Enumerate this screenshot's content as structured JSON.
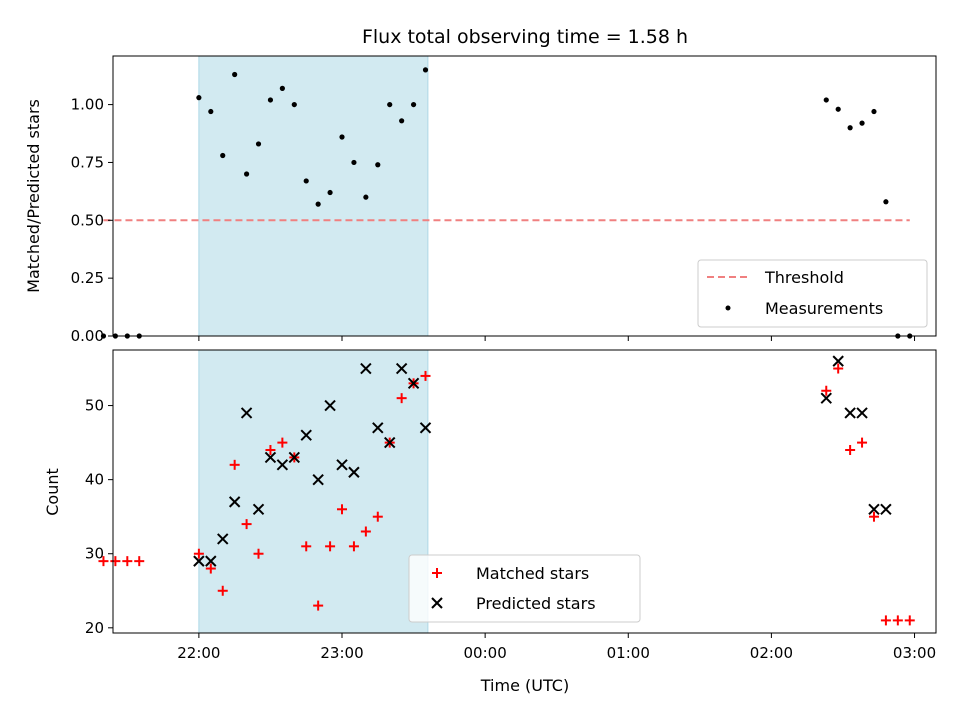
{
  "chart_data": [
    {
      "type": "scatter",
      "title": "Flux total observing time = 1.58 h",
      "xlabel": "",
      "ylabel": "Matched/Predicted stars",
      "ylim": [
        0,
        1.21
      ],
      "yticks": [
        "0.00",
        "0.25",
        "0.50",
        "0.75",
        "1.00"
      ],
      "ytick_values": [
        0,
        0.25,
        0.5,
        0.75,
        1.0
      ],
      "shaded_interval": [
        "22:00",
        "23:36"
      ],
      "shade_color": "#add8e6",
      "legend_position": "lower right",
      "threshold": {
        "name": "Threshold",
        "y": 0.5,
        "x_range": [
          "21:20",
          "02:58"
        ],
        "color": "#f08080",
        "style": "dashed"
      },
      "series": [
        {
          "name": "Measurements",
          "color": "#000000",
          "marker": "dot",
          "points": [
            [
              "21:20",
              0.0
            ],
            [
              "21:25",
              0.0
            ],
            [
              "21:30",
              0.0
            ],
            [
              "21:35",
              0.0
            ],
            [
              "22:00",
              1.03
            ],
            [
              "22:05",
              0.97
            ],
            [
              "22:10",
              0.78
            ],
            [
              "22:15",
              1.13
            ],
            [
              "22:20",
              0.7
            ],
            [
              "22:25",
              0.83
            ],
            [
              "22:30",
              1.02
            ],
            [
              "22:35",
              1.07
            ],
            [
              "22:40",
              1.0
            ],
            [
              "22:45",
              0.67
            ],
            [
              "22:50",
              0.57
            ],
            [
              "22:55",
              0.62
            ],
            [
              "23:00",
              0.86
            ],
            [
              "23:05",
              0.75
            ],
            [
              "23:10",
              0.6
            ],
            [
              "23:15",
              0.74
            ],
            [
              "23:20",
              1.0
            ],
            [
              "23:25",
              0.93
            ],
            [
              "23:30",
              1.0
            ],
            [
              "23:35",
              1.15
            ],
            [
              "02:23",
              1.02
            ],
            [
              "02:28",
              0.98
            ],
            [
              "02:33",
              0.9
            ],
            [
              "02:38",
              0.92
            ],
            [
              "02:43",
              0.97
            ],
            [
              "02:48",
              0.58
            ],
            [
              "02:53",
              0.0
            ],
            [
              "02:58",
              0.0
            ]
          ]
        }
      ]
    },
    {
      "type": "scatter",
      "xlabel": "Time (UTC)",
      "ylabel": "Count",
      "ylim": [
        19.3,
        57.5
      ],
      "yticks": [
        "20",
        "30",
        "40",
        "50"
      ],
      "ytick_values": [
        20,
        30,
        40,
        50
      ],
      "x_range": [
        "21:24",
        "03:09"
      ],
      "xticks": [
        "22:00",
        "23:00",
        "00:00",
        "01:00",
        "02:00",
        "03:00"
      ],
      "shaded_interval": [
        "22:00",
        "23:36"
      ],
      "shade_color": "#add8e6",
      "legend_position": "lower center",
      "series": [
        {
          "name": "Matched stars",
          "color": "#ff0000",
          "marker": "plus",
          "points": [
            [
              "21:20",
              29
            ],
            [
              "21:25",
              29
            ],
            [
              "21:30",
              29
            ],
            [
              "21:35",
              29
            ],
            [
              "22:00",
              30
            ],
            [
              "22:05",
              28
            ],
            [
              "22:10",
              25
            ],
            [
              "22:15",
              42
            ],
            [
              "22:20",
              34
            ],
            [
              "22:25",
              30
            ],
            [
              "22:30",
              44
            ],
            [
              "22:35",
              45
            ],
            [
              "22:40",
              43
            ],
            [
              "22:45",
              31
            ],
            [
              "22:50",
              23
            ],
            [
              "22:55",
              31
            ],
            [
              "23:00",
              36
            ],
            [
              "23:05",
              31
            ],
            [
              "23:10",
              33
            ],
            [
              "23:15",
              35
            ],
            [
              "23:20",
              45
            ],
            [
              "23:25",
              51
            ],
            [
              "23:30",
              53
            ],
            [
              "23:35",
              54
            ],
            [
              "02:23",
              52
            ],
            [
              "02:28",
              55
            ],
            [
              "02:33",
              44
            ],
            [
              "02:38",
              45
            ],
            [
              "02:43",
              35
            ],
            [
              "02:48",
              21
            ],
            [
              "02:53",
              21
            ],
            [
              "02:58",
              21
            ]
          ]
        },
        {
          "name": "Predicted stars",
          "color": "#000000",
          "marker": "x",
          "points": [
            [
              "22:00",
              29
            ],
            [
              "22:05",
              29
            ],
            [
              "22:10",
              32
            ],
            [
              "22:15",
              37
            ],
            [
              "22:20",
              49
            ],
            [
              "22:25",
              36
            ],
            [
              "22:30",
              43
            ],
            [
              "22:35",
              42
            ],
            [
              "22:40",
              43
            ],
            [
              "22:45",
              46
            ],
            [
              "22:50",
              40
            ],
            [
              "22:55",
              50
            ],
            [
              "23:00",
              42
            ],
            [
              "23:05",
              41
            ],
            [
              "23:10",
              55
            ],
            [
              "23:15",
              47
            ],
            [
              "23:20",
              45
            ],
            [
              "23:25",
              55
            ],
            [
              "23:30",
              53
            ],
            [
              "23:35",
              47
            ],
            [
              "02:23",
              51
            ],
            [
              "02:28",
              56
            ],
            [
              "02:33",
              49
            ],
            [
              "02:38",
              49
            ],
            [
              "02:43",
              36
            ],
            [
              "02:48",
              36
            ]
          ]
        }
      ]
    }
  ]
}
